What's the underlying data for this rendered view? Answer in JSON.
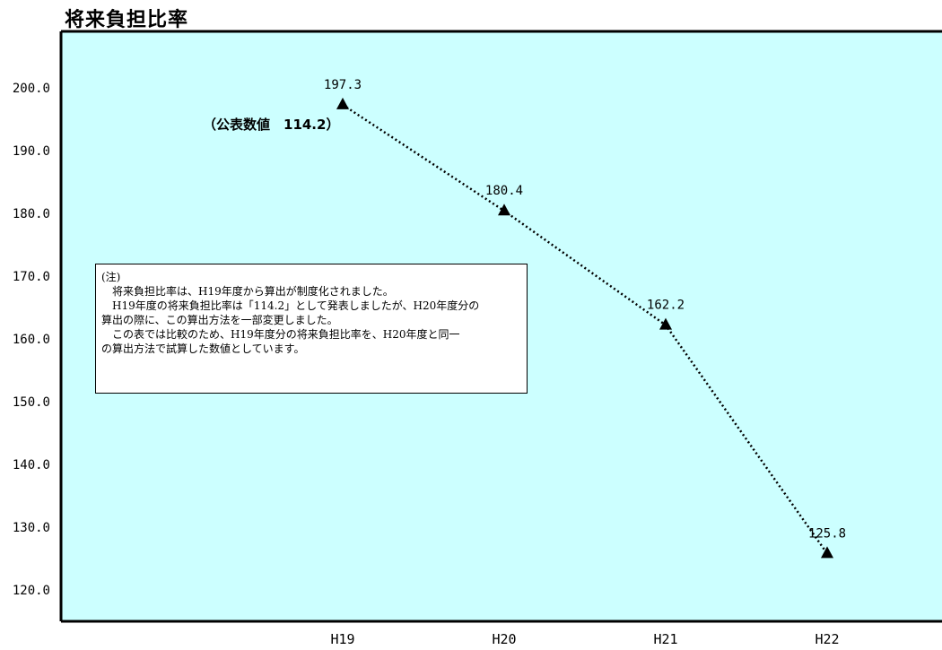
{
  "chart_data": {
    "type": "line",
    "title": "将来負担比率",
    "categories": [
      "H19",
      "H20",
      "H21",
      "H22"
    ],
    "series": [
      {
        "values": [
          197.3,
          180.4,
          162.2,
          125.8
        ],
        "labels": [
          "197.3",
          "180.4",
          "162.2",
          "125.8"
        ]
      }
    ],
    "yticks": [
      "200.0",
      "190.0",
      "180.0",
      "170.0",
      "160.0",
      "150.0",
      "140.0",
      "130.0",
      "120.0"
    ],
    "ytick_values": [
      200,
      190,
      180,
      170,
      160,
      150,
      140,
      130,
      120
    ],
    "ylim": [
      115,
      209
    ],
    "annotation": "（公表数値　114.2）",
    "note": [
      "(注)",
      "　将来負担比率は、H19年度から算出が制度化されました。",
      "　H19年度の将来負担比率は「114.2」として発表しましたが、H20年度分の",
      "算出の際に、この算出方法を一部変更しました。",
      "　この表では比較のため、H19年度分の将来負担比率を、H20年度と同一",
      "の算出方法で試算した数値としています。"
    ],
    "colors": {
      "plot_background": "#ccffff",
      "line": "#000000",
      "marker": "#000000"
    },
    "grid": false,
    "marker": "triangle",
    "line_style": "dotted"
  }
}
